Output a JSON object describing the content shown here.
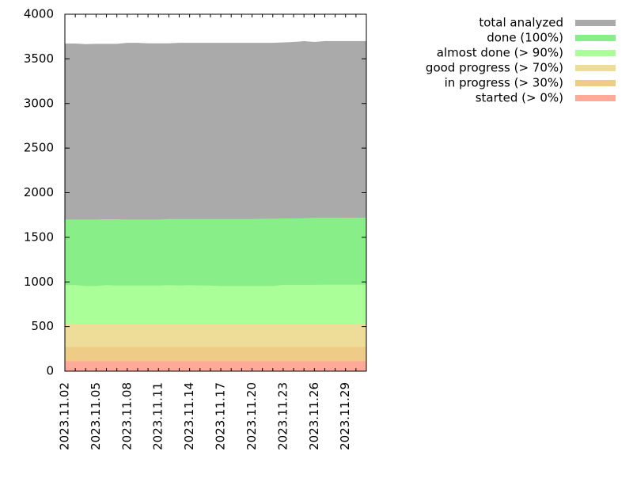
{
  "chart_data": {
    "type": "area",
    "x": [
      "2023.11.02",
      "2023.11.03",
      "2023.11.04",
      "2023.11.05",
      "2023.11.06",
      "2023.11.07",
      "2023.11.08",
      "2023.11.09",
      "2023.11.10",
      "2023.11.11",
      "2023.11.12",
      "2023.11.13",
      "2023.11.14",
      "2023.11.15",
      "2023.11.16",
      "2023.11.17",
      "2023.11.18",
      "2023.11.19",
      "2023.11.20",
      "2023.11.21",
      "2023.11.22",
      "2023.11.23",
      "2023.11.24",
      "2023.11.25",
      "2023.11.26",
      "2023.11.27",
      "2023.11.28",
      "2023.11.29",
      "2023.11.30",
      "2023.12.01"
    ],
    "series": [
      {
        "name": "total analyzed",
        "color": "#aaaaaa",
        "values": [
          3672,
          3672,
          3665,
          3668,
          3668,
          3668,
          3680,
          3680,
          3674,
          3674,
          3674,
          3680,
          3680,
          3680,
          3680,
          3680,
          3680,
          3680,
          3680,
          3680,
          3680,
          3684,
          3690,
          3698,
          3690,
          3700,
          3700,
          3700,
          3700,
          3700
        ]
      },
      {
        "name": "done (100%)",
        "color": "#88ee88",
        "values": [
          1700,
          1700,
          1700,
          1700,
          1703,
          1703,
          1700,
          1700,
          1700,
          1700,
          1705,
          1705,
          1705,
          1705,
          1705,
          1705,
          1705,
          1705,
          1705,
          1708,
          1708,
          1712,
          1712,
          1715,
          1718,
          1718,
          1718,
          1720,
          1720,
          1720
        ]
      },
      {
        "name": "almost done (> 90%)",
        "color": "#aaff99",
        "values": [
          965,
          965,
          955,
          955,
          965,
          960,
          960,
          960,
          960,
          960,
          965,
          960,
          965,
          960,
          960,
          955,
          955,
          955,
          955,
          955,
          955,
          968,
          968,
          968,
          968,
          970,
          970,
          970,
          970,
          970
        ]
      },
      {
        "name": "good progress (> 70%)",
        "color": "#eedd99",
        "values": [
          530,
          530,
          530,
          530,
          530,
          530,
          530,
          530,
          530,
          530,
          530,
          530,
          530,
          530,
          530,
          530,
          530,
          530,
          530,
          530,
          530,
          530,
          530,
          530,
          530,
          530,
          530,
          530,
          530,
          530
        ]
      },
      {
        "name": "in progress (> 30%)",
        "color": "#eecc88",
        "values": [
          270,
          270,
          270,
          270,
          270,
          270,
          270,
          270,
          270,
          270,
          270,
          270,
          270,
          270,
          270,
          270,
          270,
          270,
          270,
          270,
          270,
          270,
          270,
          270,
          270,
          270,
          270,
          270,
          270,
          270
        ]
      },
      {
        "name": "started (> 0%)",
        "color": "#ffaa99",
        "values": [
          112,
          112,
          112,
          112,
          112,
          112,
          112,
          112,
          112,
          112,
          112,
          112,
          112,
          112,
          112,
          112,
          112,
          112,
          112,
          112,
          112,
          112,
          112,
          112,
          112,
          112,
          112,
          112,
          112,
          112
        ]
      }
    ],
    "ylim": [
      0,
      4000
    ],
    "yticks": [
      0,
      500,
      1000,
      1500,
      2000,
      2500,
      3000,
      3500,
      4000
    ]
  }
}
